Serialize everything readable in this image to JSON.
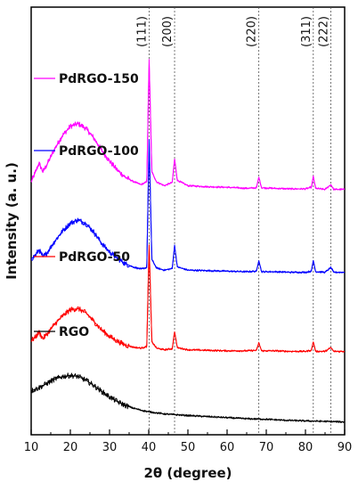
{
  "chart_data": {
    "type": "line",
    "xlabel": "2θ (degree)",
    "ylabel": "Intensity (a. u.)",
    "xlim": [
      10,
      90
    ],
    "x_ticks": [
      "10",
      "20",
      "30",
      "40",
      "50",
      "60",
      "70",
      "80",
      "90"
    ],
    "y_ticks_shown": false,
    "grid": false,
    "legend_placement": "left, above each curve",
    "reference_lines": [
      {
        "x": 40.1,
        "label": "(111)"
      },
      {
        "x": 46.6,
        "label": "(200)"
      },
      {
        "x": 68.1,
        "label": "(220)"
      },
      {
        "x": 82.0,
        "label": "(311)"
      },
      {
        "x": 86.5,
        "label": "(222)"
      }
    ],
    "series": [
      {
        "name": "PdRGO-150",
        "color": "#ff00ff",
        "x": [
          10,
          11,
          12,
          13,
          14,
          16,
          18,
          20,
          22,
          24,
          26,
          28,
          30,
          32,
          34,
          36,
          38,
          39.5,
          40.1,
          40.8,
          42,
          44,
          46,
          46.6,
          47.3,
          50,
          55,
          60,
          65,
          67.5,
          68.1,
          68.8,
          72,
          76,
          80,
          81.5,
          82.0,
          82.6,
          85,
          86.5,
          87.2,
          90
        ],
        "values": [
          45.3,
          47,
          48.8,
          47.2,
          48.5,
          51.5,
          54,
          55.7,
          56.2,
          55.3,
          53.5,
          51.2,
          49.2,
          47.5,
          46.2,
          45.4,
          44.8,
          45.3,
          68.3,
          47.2,
          45.3,
          44.6,
          45.2,
          49.6,
          45.6,
          44.6,
          44.4,
          44.3,
          44.1,
          44.2,
          46.2,
          44.2,
          44.1,
          44,
          44,
          44.3,
          46.3,
          44.1,
          43.9,
          44.8,
          43.9,
          43.9
        ]
      },
      {
        "name": "PdRGO-100",
        "color": "#0000ff",
        "x": [
          10,
          11,
          12,
          13,
          14,
          16,
          18,
          20,
          22,
          24,
          26,
          28,
          30,
          32,
          34,
          36,
          38,
          39.5,
          40.1,
          40.8,
          42,
          44,
          46,
          46.6,
          47.3,
          50,
          55,
          60,
          65,
          67.5,
          68.1,
          68.8,
          72,
          76,
          80,
          81.5,
          82.0,
          82.6,
          85,
          86.5,
          87.2,
          90
        ],
        "values": [
          30.9,
          31.5,
          32.6,
          31.3,
          32,
          34.2,
          36.1,
          37.6,
          38.2,
          37.5,
          35.9,
          33.8,
          32.2,
          31,
          30,
          29.4,
          29,
          29.3,
          53.3,
          30.8,
          29.2,
          28.8,
          29.1,
          33.4,
          29.4,
          28.8,
          28.7,
          28.6,
          28.5,
          28.6,
          30.6,
          28.5,
          28.5,
          28.4,
          28.4,
          28.6,
          30.6,
          28.5,
          28.4,
          29.3,
          28.4,
          28.4
        ]
      },
      {
        "name": "PdRGO-50",
        "color": "#ff0000",
        "x": [
          10,
          11,
          12,
          13,
          14,
          16,
          18,
          20,
          22,
          24,
          26,
          28,
          30,
          32,
          34,
          36,
          38,
          39.5,
          40.1,
          40.8,
          42,
          44,
          46,
          46.6,
          47.3,
          50,
          55,
          60,
          65,
          67.5,
          68.1,
          68.8,
          72,
          76,
          80,
          81.5,
          82.0,
          82.6,
          85,
          86.5,
          87.2,
          90
        ],
        "values": [
          15.6,
          16.2,
          17.2,
          16,
          16.8,
          18.7,
          20.2,
          21.4,
          21.6,
          20.8,
          19.2,
          17.6,
          16.4,
          15.5,
          14.8,
          14.4,
          14.2,
          14.5,
          33.6,
          15.4,
          14.2,
          13.9,
          14.1,
          17.3,
          14.3,
          13.9,
          13.8,
          13.7,
          13.7,
          13.8,
          15.2,
          13.7,
          13.7,
          13.6,
          13.6,
          13.8,
          15.4,
          13.6,
          13.6,
          14.3,
          13.6,
          13.6
        ]
      },
      {
        "name": "RGO",
        "color": "#000000",
        "x": [
          10,
          12,
          14,
          16,
          18,
          20,
          22,
          24,
          26,
          28,
          30,
          32,
          34,
          36,
          38,
          40,
          44,
          50,
          55,
          60,
          65,
          70,
          75,
          80,
          85,
          90
        ],
        "values": [
          6.2,
          6.8,
          7.6,
          8.4,
          8.9,
          9.1,
          8.9,
          8.2,
          7.2,
          6.1,
          5.1,
          4.2,
          3.5,
          3.0,
          2.6,
          2.3,
          1.9,
          1.6,
          1.4,
          1.2,
          1.0,
          0.9,
          0.7,
          0.6,
          0.5,
          0.4
        ]
      }
    ]
  }
}
